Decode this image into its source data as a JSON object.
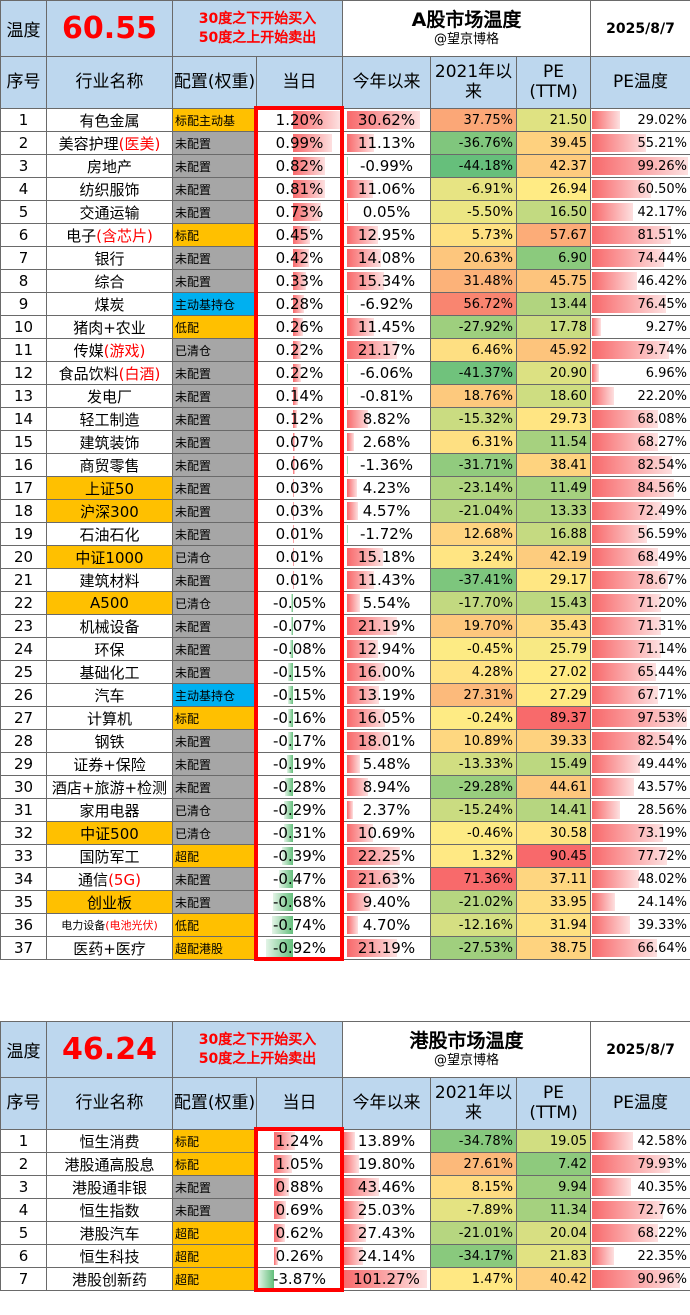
{
  "a_share": {
    "label_temp": "温度",
    "temperature": "60.55",
    "rule_line1": "30度之下开始买入",
    "rule_line2": "50度之上开始卖出",
    "title": "A股市场温度",
    "subtitle": "@望京博格",
    "date": "2025/8/7",
    "headers": [
      "序号",
      "行业名称",
      "配置(权重)",
      "当日",
      "今年以来",
      "2021年以来",
      "PE (TTM)",
      "PE温度"
    ],
    "rows": [
      {
        "no": "1",
        "name": "有色金属",
        "name_suffix": "",
        "cfg": "标配主动基",
        "cfg_style": "gold",
        "hl": false,
        "day": "1.20%",
        "dayv": 1.2,
        "ytd": "30.62%",
        "ytdv": 30.62,
        "y21": "37.75%",
        "y21v": 37.75,
        "pe": "21.50",
        "pev": 21.5,
        "pet": "29.02%",
        "petv": 29.02
      },
      {
        "no": "2",
        "name": "美容护理",
        "name_suffix": "(医美)",
        "cfg": "未配置",
        "cfg_style": "grey",
        "hl": false,
        "day": "0.99%",
        "dayv": 0.99,
        "ytd": "11.13%",
        "ytdv": 11.13,
        "y21": "-36.76%",
        "y21v": -36.76,
        "pe": "39.45",
        "pev": 39.45,
        "pet": "55.21%",
        "petv": 55.21
      },
      {
        "no": "3",
        "name": "房地产",
        "name_suffix": "",
        "cfg": "未配置",
        "cfg_style": "grey",
        "hl": false,
        "day": "0.82%",
        "dayv": 0.82,
        "ytd": "-0.99%",
        "ytdv": -0.99,
        "y21": "-44.18%",
        "y21v": -44.18,
        "pe": "42.37",
        "pev": 42.37,
        "pet": "99.26%",
        "petv": 99.26
      },
      {
        "no": "4",
        "name": "纺织服饰",
        "name_suffix": "",
        "cfg": "未配置",
        "cfg_style": "grey",
        "hl": false,
        "day": "0.81%",
        "dayv": 0.81,
        "ytd": "11.06%",
        "ytdv": 11.06,
        "y21": "-6.91%",
        "y21v": -6.91,
        "pe": "26.94",
        "pev": 26.94,
        "pet": "60.50%",
        "petv": 60.5
      },
      {
        "no": "5",
        "name": "交通运输",
        "name_suffix": "",
        "cfg": "未配置",
        "cfg_style": "grey",
        "hl": false,
        "day": "0.73%",
        "dayv": 0.73,
        "ytd": "0.05%",
        "ytdv": 0.05,
        "y21": "-5.50%",
        "y21v": -5.5,
        "pe": "16.50",
        "pev": 16.5,
        "pet": "42.17%",
        "petv": 42.17
      },
      {
        "no": "6",
        "name": "电子",
        "name_suffix": "(含芯片)",
        "cfg": "标配",
        "cfg_style": "gold",
        "hl": false,
        "day": "0.45%",
        "dayv": 0.45,
        "ytd": "12.95%",
        "ytdv": 12.95,
        "y21": "5.73%",
        "y21v": 5.73,
        "pe": "57.67",
        "pev": 57.67,
        "pet": "81.51%",
        "petv": 81.51
      },
      {
        "no": "7",
        "name": "银行",
        "name_suffix": "",
        "cfg": "未配置",
        "cfg_style": "grey",
        "hl": false,
        "day": "0.42%",
        "dayv": 0.42,
        "ytd": "14.08%",
        "ytdv": 14.08,
        "y21": "20.63%",
        "y21v": 20.63,
        "pe": "6.90",
        "pev": 6.9,
        "pet": "74.44%",
        "petv": 74.44
      },
      {
        "no": "8",
        "name": "综合",
        "name_suffix": "",
        "cfg": "未配置",
        "cfg_style": "grey",
        "hl": false,
        "day": "0.33%",
        "dayv": 0.33,
        "ytd": "15.34%",
        "ytdv": 15.34,
        "y21": "31.48%",
        "y21v": 31.48,
        "pe": "45.75",
        "pev": 45.75,
        "pet": "46.42%",
        "petv": 46.42
      },
      {
        "no": "9",
        "name": "煤炭",
        "name_suffix": "",
        "cfg": "主动基持仓",
        "cfg_style": "blue",
        "hl": false,
        "day": "0.28%",
        "dayv": 0.28,
        "ytd": "-6.92%",
        "ytdv": -6.92,
        "y21": "56.72%",
        "y21v": 56.72,
        "pe": "13.44",
        "pev": 13.44,
        "pet": "76.45%",
        "petv": 76.45
      },
      {
        "no": "10",
        "name": "猪肉+农业",
        "name_suffix": "",
        "cfg": "低配",
        "cfg_style": "gold",
        "hl": false,
        "day": "0.26%",
        "dayv": 0.26,
        "ytd": "11.45%",
        "ytdv": 11.45,
        "y21": "-27.92%",
        "y21v": -27.92,
        "pe": "17.78",
        "pev": 17.78,
        "pet": "9.27%",
        "petv": 9.27
      },
      {
        "no": "11",
        "name": "传媒",
        "name_suffix": "(游戏)",
        "cfg": "已清仓",
        "cfg_style": "grey",
        "hl": false,
        "day": "0.22%",
        "dayv": 0.22,
        "ytd": "21.17%",
        "ytdv": 21.17,
        "y21": "6.46%",
        "y21v": 6.46,
        "pe": "45.92",
        "pev": 45.92,
        "pet": "79.74%",
        "petv": 79.74
      },
      {
        "no": "12",
        "name": "食品饮料",
        "name_suffix": "(白酒)",
        "cfg": "未配置",
        "cfg_style": "grey",
        "hl": false,
        "day": "0.22%",
        "dayv": 0.22,
        "ytd": "-6.06%",
        "ytdv": -6.06,
        "y21": "-41.37%",
        "y21v": -41.37,
        "pe": "20.90",
        "pev": 20.9,
        "pet": "6.96%",
        "petv": 6.96
      },
      {
        "no": "13",
        "name": "发电厂",
        "name_suffix": "",
        "cfg": "未配置",
        "cfg_style": "grey",
        "hl": false,
        "day": "0.14%",
        "dayv": 0.14,
        "ytd": "-0.81%",
        "ytdv": -0.81,
        "y21": "18.76%",
        "y21v": 18.76,
        "pe": "18.60",
        "pev": 18.6,
        "pet": "22.20%",
        "petv": 22.2
      },
      {
        "no": "14",
        "name": "轻工制造",
        "name_suffix": "",
        "cfg": "未配置",
        "cfg_style": "grey",
        "hl": false,
        "day": "0.12%",
        "dayv": 0.12,
        "ytd": "8.82%",
        "ytdv": 8.82,
        "y21": "-15.32%",
        "y21v": -15.32,
        "pe": "29.73",
        "pev": 29.73,
        "pet": "68.08%",
        "petv": 68.08
      },
      {
        "no": "15",
        "name": "建筑装饰",
        "name_suffix": "",
        "cfg": "未配置",
        "cfg_style": "grey",
        "hl": false,
        "day": "0.07%",
        "dayv": 0.07,
        "ytd": "2.68%",
        "ytdv": 2.68,
        "y21": "6.31%",
        "y21v": 6.31,
        "pe": "11.54",
        "pev": 11.54,
        "pet": "68.27%",
        "petv": 68.27
      },
      {
        "no": "16",
        "name": "商贸零售",
        "name_suffix": "",
        "cfg": "未配置",
        "cfg_style": "grey",
        "hl": false,
        "day": "0.06%",
        "dayv": 0.06,
        "ytd": "-1.36%",
        "ytdv": -1.36,
        "y21": "-31.71%",
        "y21v": -31.71,
        "pe": "38.41",
        "pev": 38.41,
        "pet": "82.54%",
        "petv": 82.54
      },
      {
        "no": "17",
        "name": "上证50",
        "name_suffix": "",
        "cfg": "未配置",
        "cfg_style": "grey",
        "hl": true,
        "day": "0.03%",
        "dayv": 0.03,
        "ytd": "4.23%",
        "ytdv": 4.23,
        "y21": "-23.14%",
        "y21v": -23.14,
        "pe": "11.49",
        "pev": 11.49,
        "pet": "84.56%",
        "petv": 84.56
      },
      {
        "no": "18",
        "name": "沪深300",
        "name_suffix": "",
        "cfg": "未配置",
        "cfg_style": "grey",
        "hl": true,
        "day": "0.03%",
        "dayv": 0.03,
        "ytd": "4.57%",
        "ytdv": 4.57,
        "y21": "-21.04%",
        "y21v": -21.04,
        "pe": "13.33",
        "pev": 13.33,
        "pet": "72.49%",
        "petv": 72.49
      },
      {
        "no": "19",
        "name": "石油石化",
        "name_suffix": "",
        "cfg": "未配置",
        "cfg_style": "grey",
        "hl": false,
        "day": "0.01%",
        "dayv": 0.01,
        "ytd": "-1.72%",
        "ytdv": -1.72,
        "y21": "12.68%",
        "y21v": 12.68,
        "pe": "16.88",
        "pev": 16.88,
        "pet": "56.59%",
        "petv": 56.59
      },
      {
        "no": "20",
        "name": "中证1000",
        "name_suffix": "",
        "cfg": "已清仓",
        "cfg_style": "grey",
        "hl": true,
        "day": "0.01%",
        "dayv": 0.01,
        "ytd": "15.18%",
        "ytdv": 15.18,
        "y21": "3.24%",
        "y21v": 3.24,
        "pe": "42.19",
        "pev": 42.19,
        "pet": "68.49%",
        "petv": 68.49
      },
      {
        "no": "21",
        "name": "建筑材料",
        "name_suffix": "",
        "cfg": "未配置",
        "cfg_style": "grey",
        "hl": false,
        "day": "0.01%",
        "dayv": 0.01,
        "ytd": "11.43%",
        "ytdv": 11.43,
        "y21": "-37.41%",
        "y21v": -37.41,
        "pe": "29.17",
        "pev": 29.17,
        "pet": "78.67%",
        "petv": 78.67
      },
      {
        "no": "22",
        "name": "A500",
        "name_suffix": "",
        "cfg": "已清仓",
        "cfg_style": "grey",
        "hl": true,
        "day": "-0.05%",
        "dayv": -0.05,
        "ytd": "5.54%",
        "ytdv": 5.54,
        "y21": "-17.70%",
        "y21v": -17.7,
        "pe": "15.43",
        "pev": 15.43,
        "pet": "71.20%",
        "petv": 71.2
      },
      {
        "no": "23",
        "name": "机械设备",
        "name_suffix": "",
        "cfg": "未配置",
        "cfg_style": "grey",
        "hl": false,
        "day": "-0.07%",
        "dayv": -0.07,
        "ytd": "21.19%",
        "ytdv": 21.19,
        "y21": "19.70%",
        "y21v": 19.7,
        "pe": "35.43",
        "pev": 35.43,
        "pet": "71.31%",
        "petv": 71.31
      },
      {
        "no": "24",
        "name": "环保",
        "name_suffix": "",
        "cfg": "未配置",
        "cfg_style": "grey",
        "hl": false,
        "day": "-0.08%",
        "dayv": -0.08,
        "ytd": "12.94%",
        "ytdv": 12.94,
        "y21": "-0.45%",
        "y21v": -0.45,
        "pe": "25.79",
        "pev": 25.79,
        "pet": "71.14%",
        "petv": 71.14
      },
      {
        "no": "25",
        "name": "基础化工",
        "name_suffix": "",
        "cfg": "未配置",
        "cfg_style": "grey",
        "hl": false,
        "day": "-0.15%",
        "dayv": -0.15,
        "ytd": "16.00%",
        "ytdv": 16.0,
        "y21": "4.28%",
        "y21v": 4.28,
        "pe": "27.02",
        "pev": 27.02,
        "pet": "65.44%",
        "petv": 65.44
      },
      {
        "no": "26",
        "name": "汽车",
        "name_suffix": "",
        "cfg": "主动基持仓",
        "cfg_style": "blue",
        "hl": false,
        "day": "-0.15%",
        "dayv": -0.15,
        "ytd": "13.19%",
        "ytdv": 13.19,
        "y21": "27.31%",
        "y21v": 27.31,
        "pe": "27.29",
        "pev": 27.29,
        "pet": "67.71%",
        "petv": 67.71
      },
      {
        "no": "27",
        "name": "计算机",
        "name_suffix": "",
        "cfg": "标配",
        "cfg_style": "gold",
        "hl": false,
        "day": "-0.16%",
        "dayv": -0.16,
        "ytd": "16.05%",
        "ytdv": 16.05,
        "y21": "-0.24%",
        "y21v": -0.24,
        "pe": "89.37",
        "pev": 89.37,
        "pet": "97.53%",
        "petv": 97.53
      },
      {
        "no": "28",
        "name": "钢铁",
        "name_suffix": "",
        "cfg": "未配置",
        "cfg_style": "grey",
        "hl": false,
        "day": "-0.17%",
        "dayv": -0.17,
        "ytd": "18.01%",
        "ytdv": 18.01,
        "y21": "10.89%",
        "y21v": 10.89,
        "pe": "39.33",
        "pev": 39.33,
        "pet": "82.54%",
        "petv": 82.54
      },
      {
        "no": "29",
        "name": "证券+保险",
        "name_suffix": "",
        "cfg": "未配置",
        "cfg_style": "grey",
        "hl": false,
        "day": "-0.19%",
        "dayv": -0.19,
        "ytd": "5.48%",
        "ytdv": 5.48,
        "y21": "-13.33%",
        "y21v": -13.33,
        "pe": "15.49",
        "pev": 15.49,
        "pet": "49.44%",
        "petv": 49.44
      },
      {
        "no": "30",
        "name": "酒店+旅游+检测",
        "name_suffix": "",
        "cfg": "未配置",
        "cfg_style": "grey",
        "hl": false,
        "day": "-0.28%",
        "dayv": -0.28,
        "ytd": "8.94%",
        "ytdv": 8.94,
        "y21": "-29.28%",
        "y21v": -29.28,
        "pe": "44.61",
        "pev": 44.61,
        "pet": "43.57%",
        "petv": 43.57
      },
      {
        "no": "31",
        "name": "家用电器",
        "name_suffix": "",
        "cfg": "已清仓",
        "cfg_style": "grey",
        "hl": false,
        "day": "-0.29%",
        "dayv": -0.29,
        "ytd": "2.37%",
        "ytdv": 2.37,
        "y21": "-15.24%",
        "y21v": -15.24,
        "pe": "14.41",
        "pev": 14.41,
        "pet": "28.56%",
        "petv": 28.56
      },
      {
        "no": "32",
        "name": "中证500",
        "name_suffix": "",
        "cfg": "已清仓",
        "cfg_style": "grey",
        "hl": true,
        "day": "-0.31%",
        "dayv": -0.31,
        "ytd": "10.69%",
        "ytdv": 10.69,
        "y21": "-0.46%",
        "y21v": -0.46,
        "pe": "30.58",
        "pev": 30.58,
        "pet": "73.19%",
        "petv": 73.19
      },
      {
        "no": "33",
        "name": "国防军工",
        "name_suffix": "",
        "cfg": "超配",
        "cfg_style": "gold",
        "hl": false,
        "day": "-0.39%",
        "dayv": -0.39,
        "ytd": "22.25%",
        "ytdv": 22.25,
        "y21": "1.32%",
        "y21v": 1.32,
        "pe": "90.45",
        "pev": 90.45,
        "pet": "77.72%",
        "petv": 77.72
      },
      {
        "no": "34",
        "name": "通信",
        "name_suffix": "(5G)",
        "cfg": "未配置",
        "cfg_style": "grey",
        "hl": false,
        "day": "-0.47%",
        "dayv": -0.47,
        "ytd": "21.63%",
        "ytdv": 21.63,
        "y21": "71.36%",
        "y21v": 71.36,
        "pe": "37.11",
        "pev": 37.11,
        "pet": "48.02%",
        "petv": 48.02
      },
      {
        "no": "35",
        "name": "创业板",
        "name_suffix": "",
        "cfg": "未配置",
        "cfg_style": "grey",
        "hl": true,
        "day": "-0.68%",
        "dayv": -0.68,
        "ytd": "9.40%",
        "ytdv": 9.4,
        "y21": "-21.02%",
        "y21v": -21.02,
        "pe": "33.95",
        "pev": 33.95,
        "pet": "24.14%",
        "petv": 24.14
      },
      {
        "no": "36",
        "name": "电力设备",
        "name_suffix": "(电池光伏)",
        "cfg": "低配",
        "cfg_style": "gold",
        "hl": false,
        "small": true,
        "day": "-0.74%",
        "dayv": -0.74,
        "ytd": "4.70%",
        "ytdv": 4.7,
        "y21": "-12.16%",
        "y21v": -12.16,
        "pe": "31.94",
        "pev": 31.94,
        "pet": "39.33%",
        "petv": 39.33
      },
      {
        "no": "37",
        "name": "医药+医疗",
        "name_suffix": "",
        "cfg": "超配港股",
        "cfg_style": "gold",
        "hl": false,
        "day": "-0.92%",
        "dayv": -0.92,
        "ytd": "21.19%",
        "ytdv": 21.19,
        "y21": "-27.53%",
        "y21v": -27.53,
        "pe": "38.75",
        "pev": 38.75,
        "pet": "66.64%",
        "petv": 66.64
      }
    ]
  },
  "hk_share": {
    "label_temp": "温度",
    "temperature": "46.24",
    "rule_line1": "30度之下开始买入",
    "rule_line2": "50度之上开始卖出",
    "title": "港股市场温度",
    "subtitle": "@望京博格",
    "date": "2025/8/7",
    "headers": [
      "序号",
      "行业名称",
      "配置(权重)",
      "当日",
      "今年以来",
      "2021年以来",
      "PE (TTM)",
      "PE温度"
    ],
    "rows": [
      {
        "no": "1",
        "name": "恒生消费",
        "name_suffix": "",
        "cfg": "标配",
        "cfg_style": "gold",
        "hl": false,
        "day": "1.24%",
        "dayv": 1.24,
        "ytd": "13.89%",
        "ytdv": 13.89,
        "y21": "-34.78%",
        "y21v": -34.78,
        "pe": "19.05",
        "pev": 19.05,
        "pet": "42.58%",
        "petv": 42.58
      },
      {
        "no": "2",
        "name": "港股通高股息",
        "name_suffix": "",
        "cfg": "标配",
        "cfg_style": "gold",
        "hl": false,
        "day": "1.05%",
        "dayv": 1.05,
        "ytd": "19.80%",
        "ytdv": 19.8,
        "y21": "27.61%",
        "y21v": 27.61,
        "pe": "7.42",
        "pev": 7.42,
        "pet": "79.93%",
        "petv": 79.93
      },
      {
        "no": "3",
        "name": "港股通非银",
        "name_suffix": "",
        "cfg": "未配置",
        "cfg_style": "grey",
        "hl": false,
        "day": "0.88%",
        "dayv": 0.88,
        "ytd": "43.46%",
        "ytdv": 43.46,
        "y21": "8.15%",
        "y21v": 8.15,
        "pe": "9.94",
        "pev": 9.94,
        "pet": "40.35%",
        "petv": 40.35
      },
      {
        "no": "4",
        "name": "恒生指数",
        "name_suffix": "",
        "cfg": "未配置",
        "cfg_style": "grey",
        "hl": false,
        "day": "0.69%",
        "dayv": 0.69,
        "ytd": "25.03%",
        "ytdv": 25.03,
        "y21": "-7.89%",
        "y21v": -7.89,
        "pe": "11.34",
        "pev": 11.34,
        "pet": "72.76%",
        "petv": 72.76
      },
      {
        "no": "5",
        "name": "港股汽车",
        "name_suffix": "",
        "cfg": "超配",
        "cfg_style": "gold",
        "hl": false,
        "day": "0.62%",
        "dayv": 0.62,
        "ytd": "27.43%",
        "ytdv": 27.43,
        "y21": "-21.01%",
        "y21v": -21.01,
        "pe": "20.04",
        "pev": 20.04,
        "pet": "68.22%",
        "petv": 68.22
      },
      {
        "no": "6",
        "name": "恒生科技",
        "name_suffix": "",
        "cfg": "超配",
        "cfg_style": "gold",
        "hl": false,
        "day": "0.26%",
        "dayv": 0.26,
        "ytd": "24.14%",
        "ytdv": 24.14,
        "y21": "-34.17%",
        "y21v": -34.17,
        "pe": "21.83",
        "pev": 21.83,
        "pet": "22.35%",
        "petv": 22.35
      },
      {
        "no": "7",
        "name": "港股创新药",
        "name_suffix": "",
        "cfg": "超配",
        "cfg_style": "gold",
        "hl": false,
        "day": "-3.87%",
        "dayv": -3.87,
        "ytd": "101.27%",
        "ytdv": 101.27,
        "y21": "1.47%",
        "y21v": 1.47,
        "pe": "40.42",
        "pev": 40.42,
        "pet": "90.96%",
        "petv": 90.96
      }
    ]
  },
  "colors": {
    "header_blue": "#bdd7ee",
    "gold": "#ffc000",
    "grey": "#a6a6a6",
    "blue": "#00b0f0",
    "red": "#ff0000",
    "bar_red": "#f8696b",
    "bar_green": "#63be7b"
  }
}
